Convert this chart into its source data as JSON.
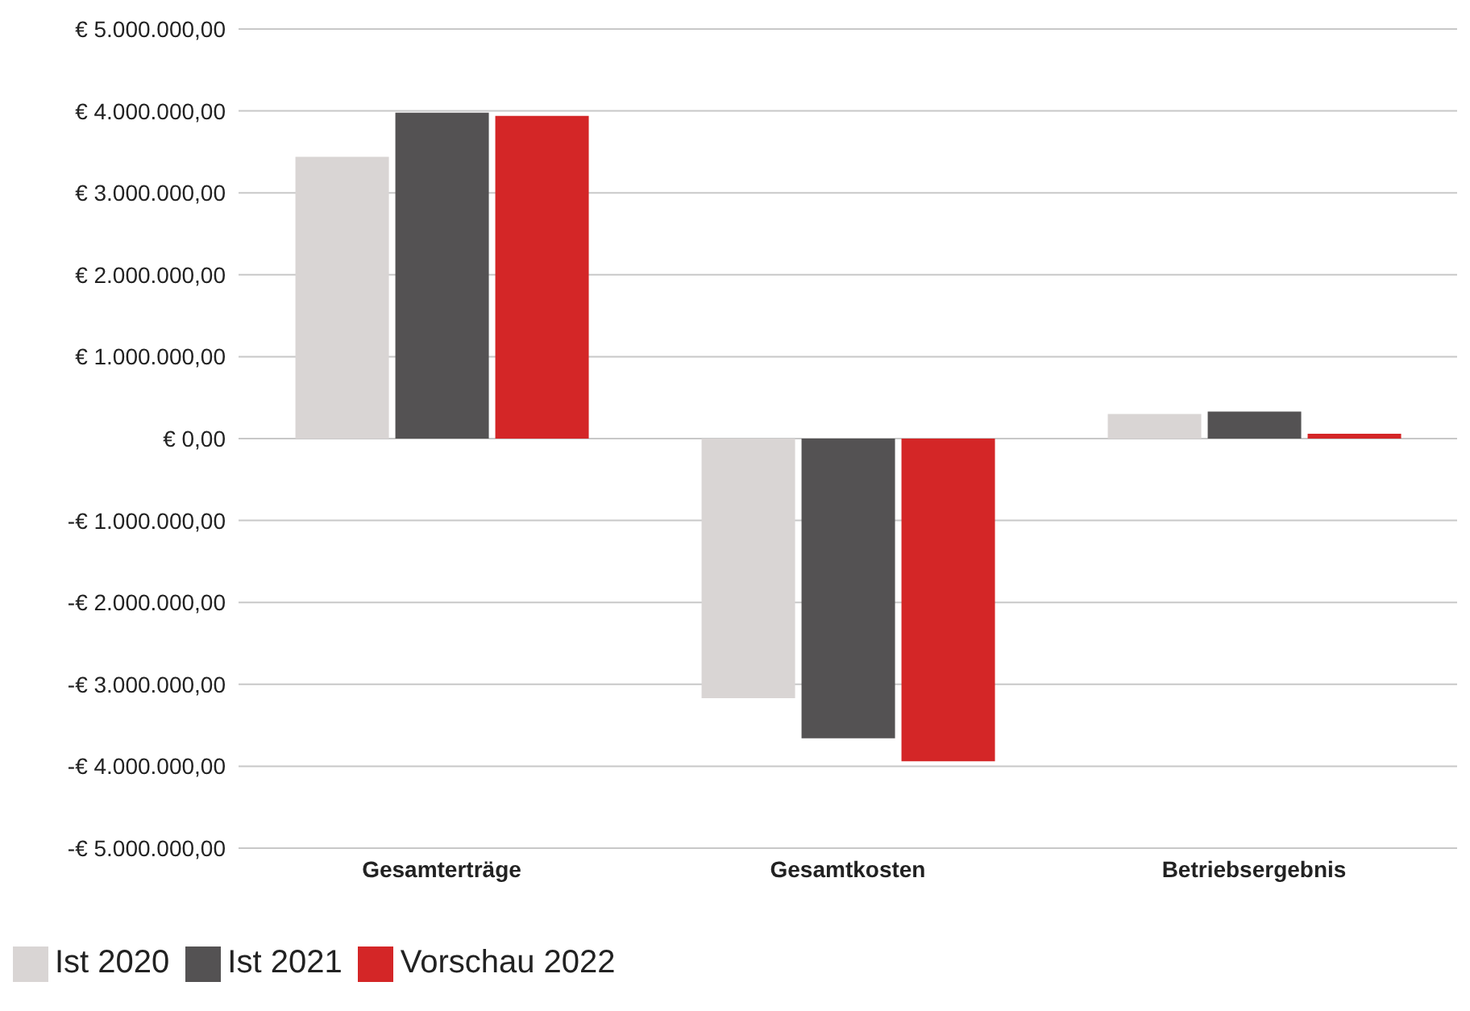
{
  "chart_data": {
    "type": "bar",
    "categories": [
      "Gesamterträge",
      "Gesamtkosten",
      "Betriebsergebnis"
    ],
    "series": [
      {
        "name": "Ist 2020",
        "color": "#d9d5d4",
        "values": [
          3440000,
          -3170000,
          300000
        ]
      },
      {
        "name": "Ist 2021",
        "color": "#545253",
        "values": [
          3980000,
          -3660000,
          330000
        ]
      },
      {
        "name": "Vorschau 2022",
        "color": "#d42627",
        "values": [
          3940000,
          -3940000,
          60000
        ]
      }
    ],
    "ylim": [
      -5000000,
      5000000
    ],
    "yticks": [
      {
        "value": -5000000,
        "label": "-€ 5.000.000,00"
      },
      {
        "value": -4000000,
        "label": "-€ 4.000.000,00"
      },
      {
        "value": -3000000,
        "label": "-€ 3.000.000,00"
      },
      {
        "value": -2000000,
        "label": "-€ 2.000.000,00"
      },
      {
        "value": -1000000,
        "label": "-€ 1.000.000,00"
      },
      {
        "value": 0,
        "label": "€ 0,00"
      },
      {
        "value": 1000000,
        "label": "€ 1.000.000,00"
      },
      {
        "value": 2000000,
        "label": "€ 2.000.000,00"
      },
      {
        "value": 3000000,
        "label": "€ 3.000.000,00"
      },
      {
        "value": 4000000,
        "label": "€ 4.000.000,00"
      },
      {
        "value": 5000000,
        "label": "€ 5.000.000,00"
      }
    ],
    "grid": "y",
    "legend": "bottom left"
  }
}
